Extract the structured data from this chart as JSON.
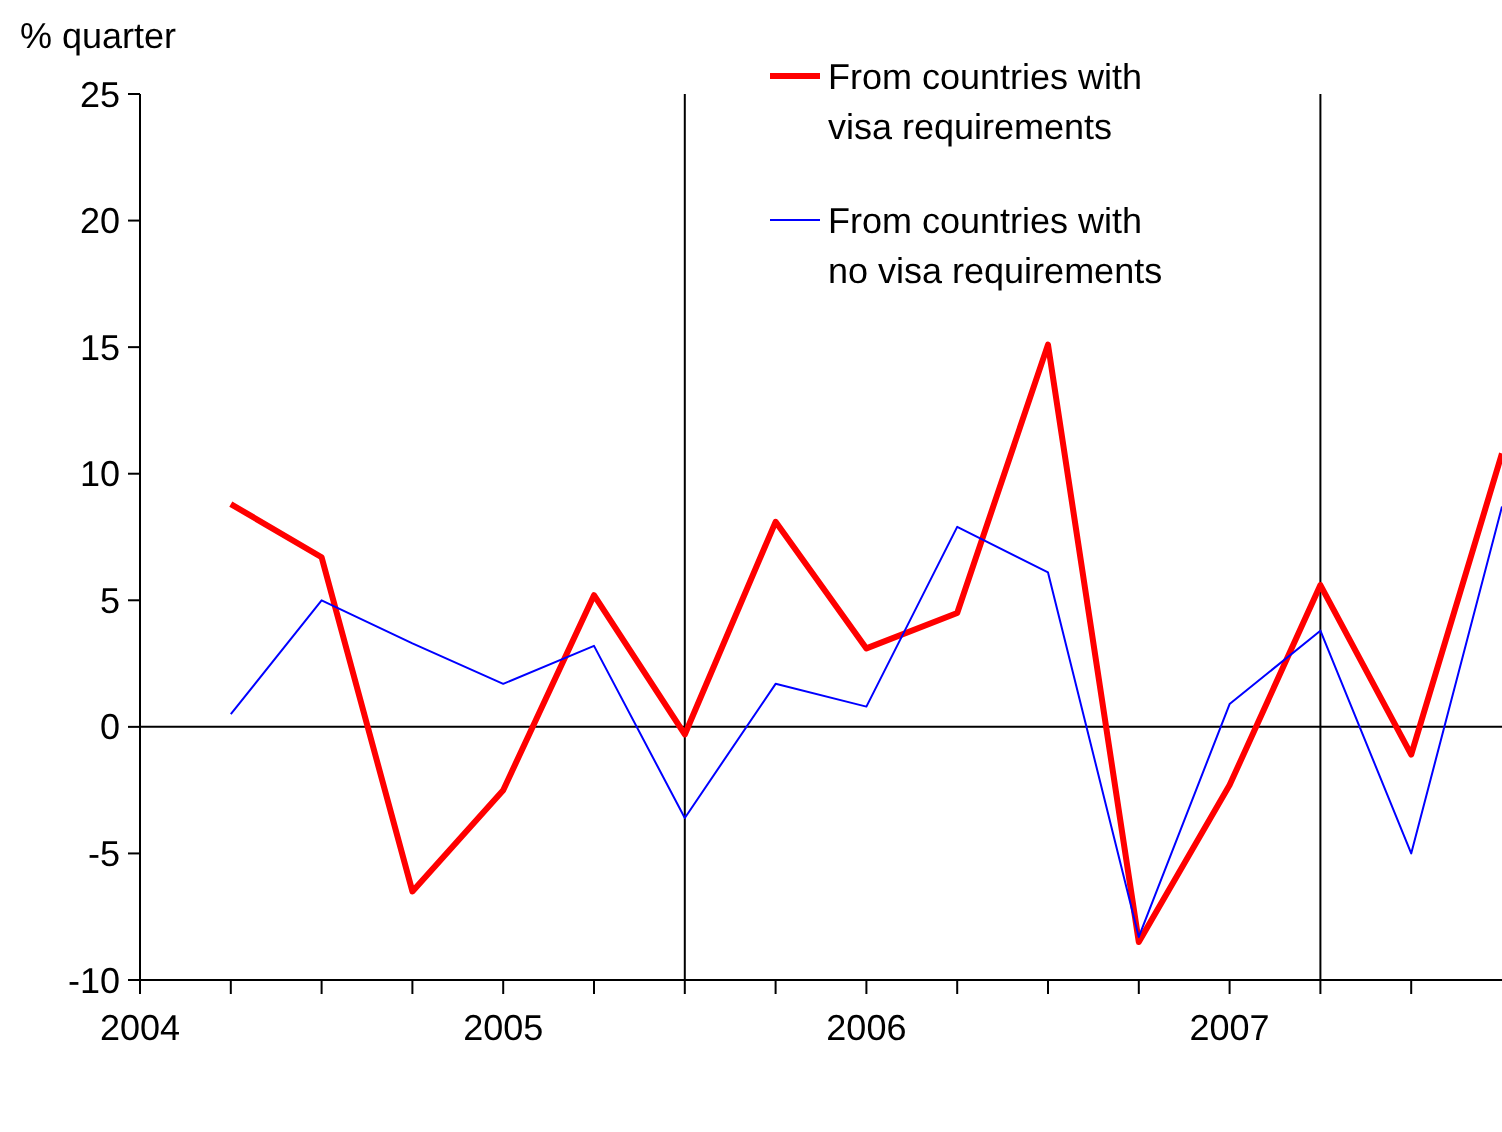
{
  "chart_data": {
    "type": "line",
    "ylabel": "% quarter",
    "x": [
      2004.25,
      2004.5,
      2004.75,
      2005,
      2005.25,
      2005.5,
      2005.75,
      2006,
      2006.25,
      2006.5,
      2006.75,
      2007,
      2007.25,
      2007.5,
      2007.75
    ],
    "series": [
      {
        "name": "From countries with visa requirements",
        "color": "#ff0000",
        "values": [
          8.8,
          6.7,
          -6.5,
          -2.5,
          5.2,
          -0.3,
          8.1,
          3.1,
          4.5,
          15.1,
          -8.5,
          -2.3,
          5.6,
          -1.1,
          10.8
        ]
      },
      {
        "name": "From countries with no visa requirements",
        "color": "#0000ff",
        "values": [
          0.5,
          5.0,
          3.3,
          1.7,
          3.2,
          -3.6,
          1.7,
          0.8,
          7.9,
          6.1,
          -8.3,
          0.9,
          3.8,
          -5.0,
          8.7
        ]
      }
    ],
    "xlim": [
      2004,
      2007.75
    ],
    "xticks": [
      2004,
      {
        "value": 2004.25,
        "label": null
      },
      {
        "value": 2004.5,
        "label": null
      },
      {
        "value": 2004.75,
        "label": null
      },
      2005,
      {
        "value": 2005.25,
        "label": null
      },
      {
        "value": 2005.5,
        "label": null
      },
      {
        "value": 2005.75,
        "label": null
      },
      2006,
      {
        "value": 2006.25,
        "label": null
      },
      {
        "value": 2006.5,
        "label": null
      },
      {
        "value": 2006.75,
        "label": null
      },
      2007,
      {
        "value": 2007.25,
        "label": null
      },
      {
        "value": 2007.5,
        "label": null
      }
    ],
    "ylim": [
      -10,
      25
    ],
    "yticks": [
      -10,
      -5,
      0,
      5,
      10,
      15,
      20,
      25
    ],
    "ref_lines": [
      {
        "axis": "y",
        "value": 0,
        "color": "#000000"
      },
      {
        "axis": "x",
        "value": 2005.5,
        "color": "#000000"
      },
      {
        "axis": "x",
        "value": 2007.25,
        "color": "#000000"
      }
    ],
    "grid": false,
    "legend": "top right",
    "marker": "none",
    "line_style": "solid"
  }
}
